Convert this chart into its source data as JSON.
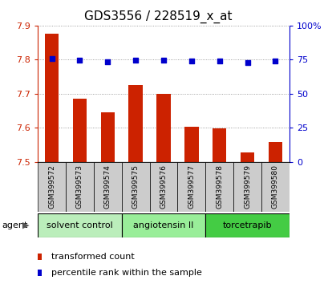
{
  "title": "GDS3556 / 228519_x_at",
  "samples": [
    "GSM399572",
    "GSM399573",
    "GSM399574",
    "GSM399575",
    "GSM399576",
    "GSM399577",
    "GSM399578",
    "GSM399579",
    "GSM399580"
  ],
  "bar_values": [
    7.875,
    7.685,
    7.645,
    7.725,
    7.7,
    7.603,
    7.598,
    7.527,
    7.558
  ],
  "dot_values": [
    75.5,
    74.5,
    73.2,
    74.8,
    74.8,
    73.8,
    74.2,
    72.8,
    73.8
  ],
  "ylim_left": [
    7.5,
    7.9
  ],
  "ylim_right": [
    0,
    100
  ],
  "yticks_left": [
    7.5,
    7.6,
    7.7,
    7.8,
    7.9
  ],
  "yticks_right": [
    0,
    25,
    50,
    75,
    100
  ],
  "ytick_labels_right": [
    "0",
    "25",
    "50",
    "75",
    "100%"
  ],
  "bar_color": "#cc2200",
  "dot_color": "#0000cc",
  "grid_color": "#888888",
  "bg_color": "#ffffff",
  "sample_bg_color": "#cccccc",
  "groups": [
    {
      "label": "solvent control",
      "start": 0,
      "end": 3,
      "color": "#bbeebb"
    },
    {
      "label": "angiotensin II",
      "start": 3,
      "end": 6,
      "color": "#99ee99"
    },
    {
      "label": "torcetrapib",
      "start": 6,
      "end": 9,
      "color": "#44cc44"
    }
  ],
  "agent_label": "agent",
  "legend_bar_label": "transformed count",
  "legend_dot_label": "percentile rank within the sample",
  "left_tick_color": "#cc2200",
  "right_tick_color": "#0000cc",
  "title_fontsize": 11,
  "tick_fontsize": 8,
  "sample_fontsize": 6.5,
  "group_label_fontsize": 8,
  "legend_fontsize": 8
}
